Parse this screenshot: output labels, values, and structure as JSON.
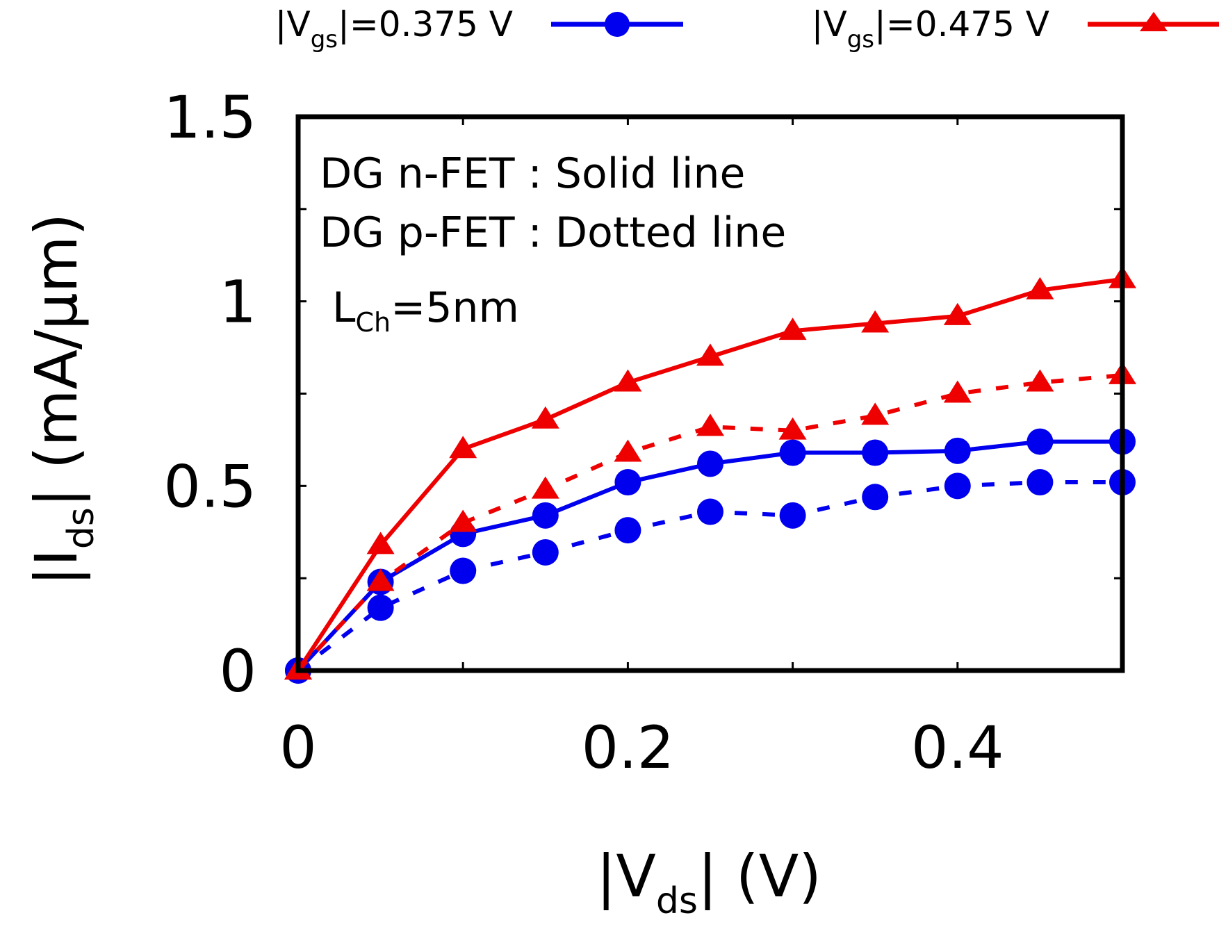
{
  "chart_data": {
    "type": "line",
    "title": "",
    "xlabel": {
      "prefix": "|V",
      "sub": "ds",
      "suffix": "| (V)"
    },
    "ylabel": {
      "prefix": "|I",
      "sub": "ds",
      "suffix": "| (mA/µm)"
    },
    "xlim": [
      0,
      0.5
    ],
    "ylim": [
      0,
      1.5
    ],
    "x_ticks": [
      0,
      0.2,
      0.4
    ],
    "x_tick_labels": [
      "0",
      "0.2",
      "0.4"
    ],
    "y_ticks": [
      0,
      0.5,
      1,
      1.5
    ],
    "y_tick_labels": [
      "0",
      "0.5",
      "1",
      "1.5"
    ],
    "grid": false,
    "legend_position": "top",
    "annotations": {
      "line1": "DG n-FET : Solid line",
      "line2": "DG p-FET : Dotted line",
      "lch_prefix": "L",
      "lch_sub": "Ch",
      "lch_suffix": "=5nm"
    },
    "x": [
      0,
      0.05,
      0.1,
      0.15,
      0.2,
      0.25,
      0.3,
      0.35,
      0.4,
      0.45,
      0.5
    ],
    "series": [
      {
        "name": {
          "prefix": "|V",
          "sub": "gs",
          "suffix": "|=0.375 V"
        },
        "device": "n-FET",
        "style": "solid",
        "marker": "circle",
        "color": "#0000ee",
        "values": [
          0,
          0.24,
          0.37,
          0.42,
          0.51,
          0.56,
          0.59,
          0.59,
          0.595,
          0.62,
          0.62
        ]
      },
      {
        "name": {
          "prefix": "|V",
          "sub": "gs",
          "suffix": "|=0.375 V"
        },
        "device": "p-FET",
        "style": "dotted",
        "marker": "circle",
        "color": "#0000ee",
        "values": [
          0,
          0.17,
          0.27,
          0.32,
          0.38,
          0.43,
          0.42,
          0.47,
          0.5,
          0.51,
          0.51
        ]
      },
      {
        "name": {
          "prefix": "|V",
          "sub": "gs",
          "suffix": "|=0.475 V"
        },
        "device": "n-FET",
        "style": "solid",
        "marker": "triangle",
        "color": "#ee0000",
        "values": [
          0,
          0.34,
          0.6,
          0.68,
          0.78,
          0.85,
          0.92,
          0.94,
          0.96,
          1.03,
          1.06
        ]
      },
      {
        "name": {
          "prefix": "|V",
          "sub": "gs",
          "suffix": "|=0.475 V"
        },
        "device": "p-FET",
        "style": "dotted",
        "marker": "triangle",
        "color": "#ee0000",
        "values": [
          0,
          0.24,
          0.4,
          0.49,
          0.59,
          0.66,
          0.65,
          0.69,
          0.75,
          0.78,
          0.8
        ]
      }
    ],
    "legend": [
      {
        "label": {
          "prefix": "|V",
          "sub": "gs",
          "suffix": "|=0.375 V"
        },
        "color": "#0000ee",
        "marker": "circle"
      },
      {
        "label": {
          "prefix": "|V",
          "sub": "gs",
          "suffix": "|=0.475 V"
        },
        "color": "#ee0000",
        "marker": "triangle"
      }
    ]
  }
}
